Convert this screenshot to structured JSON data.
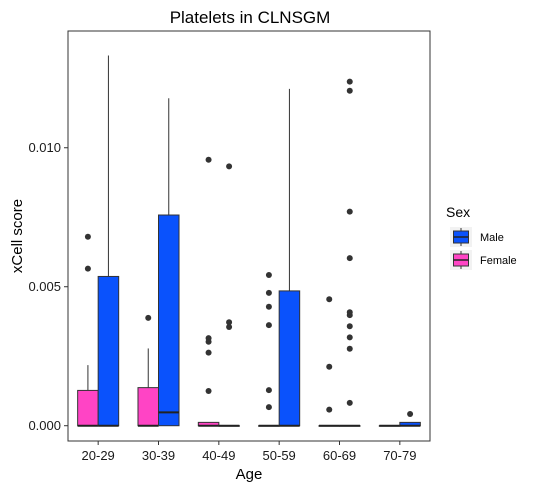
{
  "chart_data": {
    "type": "boxplot",
    "title": "Platelets in CLNSGM",
    "xlabel": "Age",
    "ylabel": "xCell score",
    "categories": [
      "20-29",
      "30-39",
      "40-49",
      "50-59",
      "60-69",
      "70-79"
    ],
    "ylim": [
      -0.00055,
      0.0142
    ],
    "yticks": [
      0.0,
      0.005,
      0.01
    ],
    "ytick_labels": [
      "0.000",
      "0.005",
      "0.010"
    ],
    "grid": false,
    "legend": {
      "title": "Sex",
      "position": "right",
      "entries": [
        {
          "label": "Male",
          "color": "#0a52fc"
        },
        {
          "label": "Female",
          "color": "#ff44c5"
        }
      ]
    },
    "series": [
      {
        "name": "Female",
        "color": "#ff44c5",
        "boxes": [
          {
            "category": "20-29",
            "whisker_low": 0.0,
            "q1": 0.0,
            "median": 0.0,
            "q3": 0.00127,
            "whisker_high": 0.00218,
            "outliers": [
              0.00565,
              0.0068
            ]
          },
          {
            "category": "30-39",
            "whisker_low": 0.0,
            "q1": 0.0,
            "median": 0.0,
            "q3": 0.00137,
            "whisker_high": 0.00278,
            "outliers": [
              0.00388
            ]
          },
          {
            "category": "40-49",
            "whisker_low": 0.0,
            "q1": 0.0,
            "median": 0.0,
            "q3": 0.00012,
            "whisker_high": 0.00012,
            "outliers": [
              0.00125,
              0.00263,
              0.00302,
              0.00315,
              0.00957
            ]
          },
          {
            "category": "50-59",
            "whisker_low": 0.0,
            "q1": 0.0,
            "median": 0.0,
            "q3": 0.0,
            "whisker_high": 0.0,
            "outliers": [
              0.00067,
              0.00128,
              0.00362,
              0.00428,
              0.00478,
              0.00542
            ]
          },
          {
            "category": "60-69",
            "whisker_low": 0.0,
            "q1": 0.0,
            "median": 0.0,
            "q3": 0.0,
            "whisker_high": 0.0,
            "outliers": [
              0.00058,
              0.00212,
              0.00455
            ]
          },
          {
            "category": "70-79",
            "whisker_low": 0.0,
            "q1": 0.0,
            "median": 0.0,
            "q3": 0.0,
            "whisker_high": 0.0,
            "outliers": []
          }
        ]
      },
      {
        "name": "Male",
        "color": "#0a52fc",
        "boxes": [
          {
            "category": "20-29",
            "whisker_low": 0.0,
            "q1": 0.0,
            "median": 0.0,
            "q3": 0.00537,
            "whisker_high": 0.01332,
            "outliers": []
          },
          {
            "category": "30-39",
            "whisker_low": 0.0,
            "q1": 0.0,
            "median": 0.00048,
            "q3": 0.00758,
            "whisker_high": 0.01178,
            "outliers": []
          },
          {
            "category": "40-49",
            "whisker_low": 0.0,
            "q1": 0.0,
            "median": 0.0,
            "q3": 0.0,
            "whisker_high": 0.0,
            "outliers": [
              0.00355,
              0.00372,
              0.00933
            ]
          },
          {
            "category": "50-59",
            "whisker_low": 0.0,
            "q1": 0.0,
            "median": 0.0,
            "q3": 0.00485,
            "whisker_high": 0.01212,
            "outliers": []
          },
          {
            "category": "60-69",
            "whisker_low": 0.0,
            "q1": 0.0,
            "median": 0.0,
            "q3": 0.0,
            "whisker_high": 0.0,
            "outliers": [
              0.00082,
              0.00277,
              0.00318,
              0.00358,
              0.00398,
              0.00408,
              0.00603,
              0.0077,
              0.01205,
              0.01238
            ]
          },
          {
            "category": "70-79",
            "whisker_low": 0.0,
            "q1": 0.0,
            "median": 0.0,
            "q3": 0.00012,
            "whisker_high": 0.00012,
            "outliers": [
              0.00042
            ]
          }
        ]
      }
    ]
  }
}
